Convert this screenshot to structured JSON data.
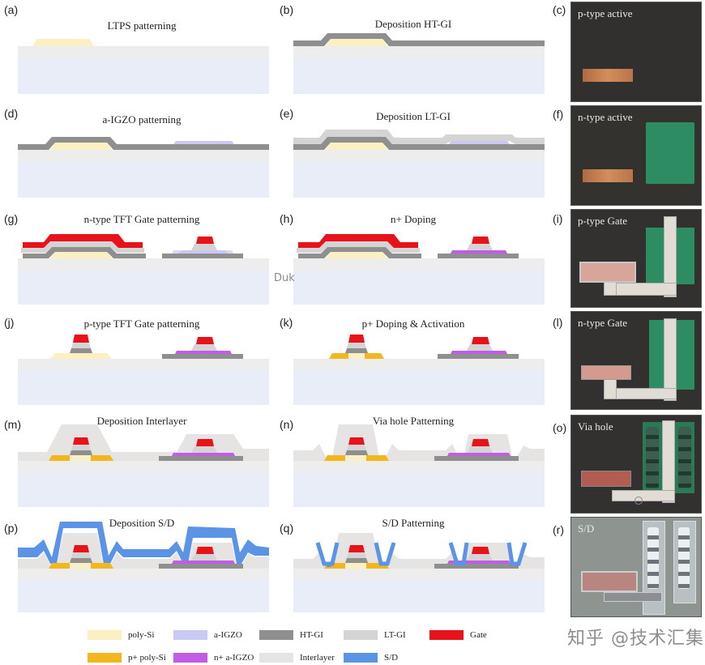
{
  "panels": [
    {
      "letter": "(a)",
      "title": "LTPS patterning"
    },
    {
      "letter": "(b)",
      "title": "Deposition HT-GI"
    },
    {
      "letter": "(d)",
      "title": "a-IGZO patterning"
    },
    {
      "letter": "(e)",
      "title": "Deposition LT-GI"
    },
    {
      "letter": "(g)",
      "title": "n-type TFT Gate patterning"
    },
    {
      "letter": "(h)",
      "title": "n+ Doping"
    },
    {
      "letter": "(j)",
      "title": "p-type TFT Gate patterning"
    },
    {
      "letter": "(k)",
      "title": "p+ Doping  & Activation"
    },
    {
      "letter": "(m)",
      "title": "Deposition Interlayer"
    },
    {
      "letter": "(n)",
      "title": "Via hole Patterning"
    },
    {
      "letter": "(p)",
      "title": "Deposition S/D"
    },
    {
      "letter": "(q)",
      "title": "S/D Patterning"
    }
  ],
  "photos": [
    {
      "letter": "(c)",
      "label": "p-type active"
    },
    {
      "letter": "(f)",
      "label": "n-type active"
    },
    {
      "letter": "(i)",
      "label": "p-type Gate"
    },
    {
      "letter": "(l)",
      "label": "n-type Gate"
    },
    {
      "letter": "(o)",
      "label": "Via hole"
    },
    {
      "letter": "(r)",
      "label": "S/D"
    }
  ],
  "legend": [
    {
      "label": "poly-Si",
      "color": "#fbefc4"
    },
    {
      "label": "a-IGZO",
      "color": "#c9c9f3"
    },
    {
      "label": "HT-GI",
      "color": "#8f8f8f"
    },
    {
      "label": "LT-GI",
      "color": "#d4d4d4"
    },
    {
      "label": "Gate",
      "color": "#e8121b"
    },
    {
      "label": "p+ poly-Si",
      "color": "#f2b61f"
    },
    {
      "label": "n+ a-IGZO",
      "color": "#c05ce6"
    },
    {
      "label": "Interlayer",
      "color": "#e6e4e2"
    },
    {
      "label": "S/D",
      "color": "#5b93e6"
    }
  ],
  "stray_text": "Duk",
  "watermark": "知乎 @技术汇集"
}
